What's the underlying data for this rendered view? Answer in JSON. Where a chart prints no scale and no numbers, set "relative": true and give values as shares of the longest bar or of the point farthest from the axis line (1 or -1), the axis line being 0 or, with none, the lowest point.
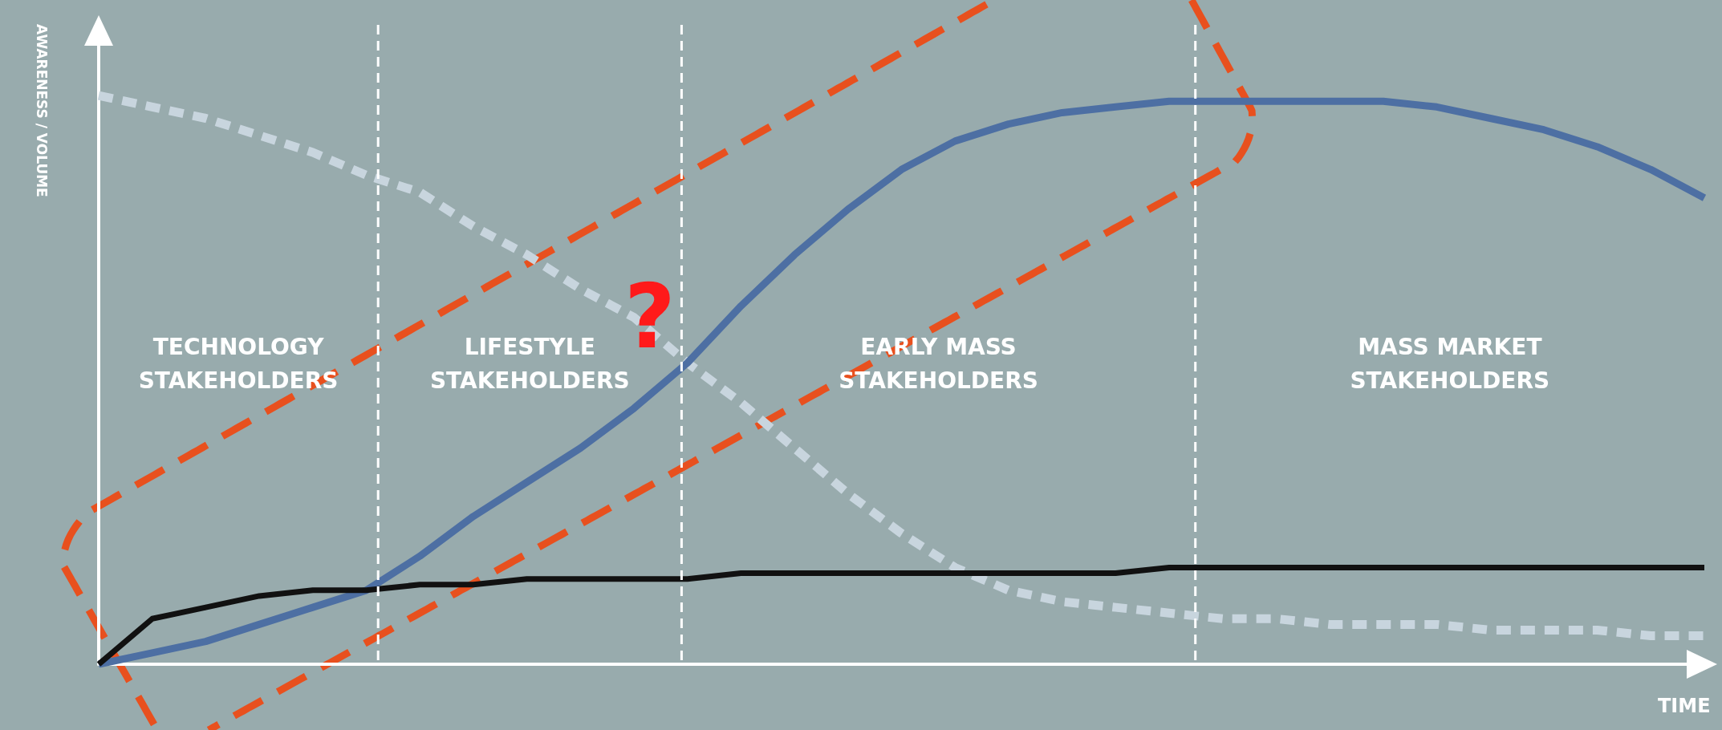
{
  "chart_data": {
    "type": "line",
    "relative": true,
    "xlabel": "TIME",
    "ylabel": "AWARENESS / VOLUME",
    "categories": [
      null,
      null,
      null,
      null,
      null,
      null,
      null,
      null,
      null,
      null,
      null,
      null,
      null,
      null,
      null,
      null,
      null,
      null,
      null,
      null,
      null,
      null,
      null,
      null,
      null,
      null,
      null,
      null,
      null,
      null,
      null
    ],
    "series": [
      {
        "color": "#c8d5de",
        "line_style": "dashed",
        "values": [
          1.0,
          0.98,
          0.96,
          0.93,
          0.9,
          0.86,
          0.83,
          0.77,
          0.72,
          0.66,
          0.61,
          0.53,
          0.46,
          0.38,
          0.3,
          0.23,
          0.17,
          0.13,
          0.11,
          0.1,
          0.09,
          0.08,
          0.08,
          0.07,
          0.07,
          0.07,
          0.06,
          0.06,
          0.06,
          0.05,
          0.05
        ]
      },
      {
        "color": "#4d6fa3",
        "line_style": "solid",
        "values": [
          0,
          0.02,
          0.04,
          0.07,
          0.1,
          0.13,
          0.19,
          0.26,
          0.32,
          0.38,
          0.45,
          0.53,
          0.63,
          0.72,
          0.8,
          0.87,
          0.92,
          0.95,
          0.97,
          0.98,
          0.99,
          0.99,
          0.99,
          0.99,
          0.99,
          0.98,
          0.96,
          0.94,
          0.91,
          0.87,
          0.82
        ]
      },
      {
        "color": "#111111",
        "line_style": "solid",
        "values": [
          0,
          0.08,
          0.1,
          0.12,
          0.13,
          0.13,
          0.14,
          0.14,
          0.15,
          0.15,
          0.15,
          0.15,
          0.16,
          0.16,
          0.16,
          0.16,
          0.16,
          0.16,
          0.16,
          0.16,
          0.17,
          0.17,
          0.17,
          0.17,
          0.17,
          0.17,
          0.17,
          0.17,
          0.17,
          0.17,
          0.17
        ]
      }
    ],
    "marker": "none",
    "grid": false,
    "annotations": [
      "TECHNOLOGY STAKEHOLDERS",
      "LIFESTYLE STAKEHOLDERS",
      "EARLY MASS STAKEHOLDERS",
      "MASS MARKET STAKEHOLDERS",
      "?"
    ]
  }
}
